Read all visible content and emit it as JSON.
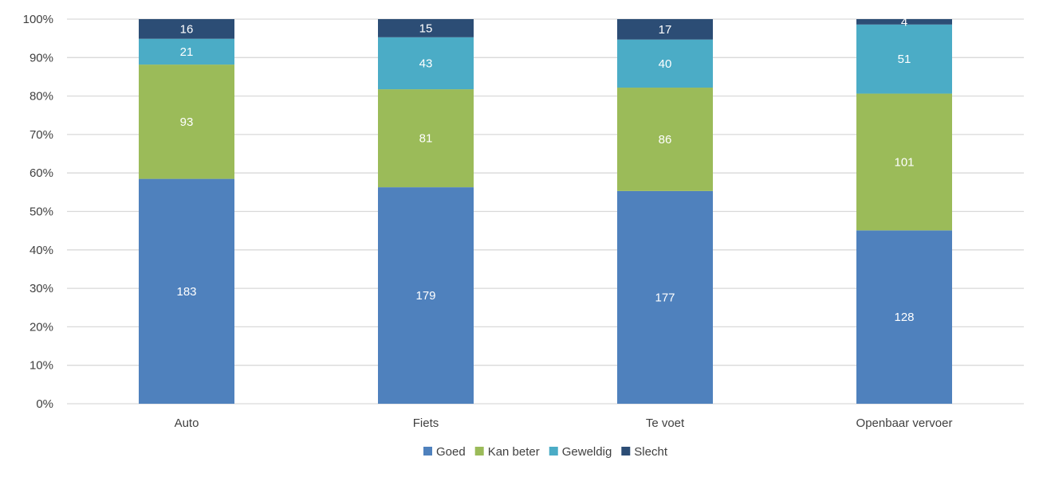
{
  "chart_data": {
    "type": "bar",
    "stacked": "percent",
    "categories": [
      "Auto",
      "Fiets",
      "Te voet",
      "Openbaar vervoer"
    ],
    "series": [
      {
        "name": "Goed",
        "values": [
          183,
          179,
          177,
          128
        ],
        "color": "#4f81bd"
      },
      {
        "name": "Kan beter",
        "values": [
          93,
          81,
          86,
          101
        ],
        "color": "#9bbb59"
      },
      {
        "name": "Geweldig",
        "values": [
          21,
          43,
          40,
          51
        ],
        "color": "#4bacc6"
      },
      {
        "name": "Slecht",
        "values": [
          16,
          15,
          17,
          4
        ],
        "color": "#2c4d75"
      }
    ],
    "y_tick_labels": [
      "0%",
      "10%",
      "20%",
      "30%",
      "40%",
      "50%",
      "60%",
      "70%",
      "80%",
      "90%",
      "100%"
    ],
    "ylim": [
      0,
      100
    ],
    "grid": true,
    "legend_position": "bottom"
  }
}
